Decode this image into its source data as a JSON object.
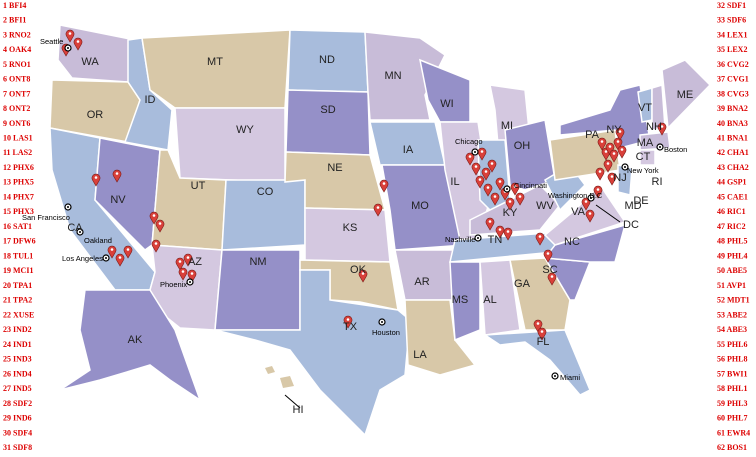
{
  "left_list": [
    "1 BFI4",
    "2 BFI1",
    "3 RNO2",
    "4 OAK4",
    "5 RNO1",
    "6 ONT8",
    "7 ONT7",
    "8 ONT2",
    "9 ONT6",
    "10 LAS1",
    "11 LAS2",
    "12 PHX6",
    "13 PHX5",
    "14 PHX7",
    "15 PHX3",
    "16 SAT1",
    "17 DFW6",
    "18 TUL1",
    "19 MCI1",
    "20 TPA1",
    "21 TPA2",
    "22 XUSE",
    "23 IND2",
    "24 IND1",
    "25 IND3",
    "26 IND4",
    "27 IND5",
    "28 SDF2",
    "29 IND6",
    "30 SDF4",
    "31 SDF8"
  ],
  "right_list": [
    "32 SDF1",
    "33 SDF6",
    "34 LEX1",
    "35 LEX2",
    "36 CVG2",
    "37 CVG1",
    "38 CVG3",
    "39 BNA2",
    "40 BNA3",
    "41 BNA1",
    "42 CHA1",
    "43 CHA2",
    "44 GSP1",
    "45 CAE1",
    "46 RIC1",
    "47 RIC2",
    "48 PHL5",
    "49 PHL4",
    "50 ABE5",
    "51 AVP1",
    "52 MDT1",
    "53 ABE2",
    "54 ABE3",
    "55 PHL6",
    "56 PHL8",
    "57 BWI1",
    "58 PHL1",
    "59 PHL3",
    "60 PHL7",
    "61 EWR4",
    "62 BOS1"
  ],
  "state_labels": [
    "WA",
    "OR",
    "CA",
    "NV",
    "ID",
    "MT",
    "WY",
    "UT",
    "AZ",
    "CO",
    "NM",
    "ND",
    "SD",
    "NE",
    "KS",
    "OK",
    "TX",
    "MN",
    "IA",
    "MO",
    "AR",
    "LA",
    "WI",
    "IL",
    "MI",
    "OH",
    "KY",
    "TN",
    "MS",
    "AL",
    "GA",
    "FL",
    "SC",
    "NC",
    "VA",
    "WV",
    "PA",
    "NY",
    "VT",
    "NH",
    "ME",
    "MA",
    "CT",
    "RI",
    "NJ",
    "DE",
    "MD",
    "DC",
    "AK",
    "HI"
  ],
  "cities": [
    "Seattle",
    "San Francisco",
    "Oakland",
    "Los Angeles",
    "Phoenix",
    "Houston",
    "Chicago",
    "Cincinnati",
    "Nashville",
    "Washington D.C",
    "New York",
    "Boston",
    "Miami"
  ]
}
